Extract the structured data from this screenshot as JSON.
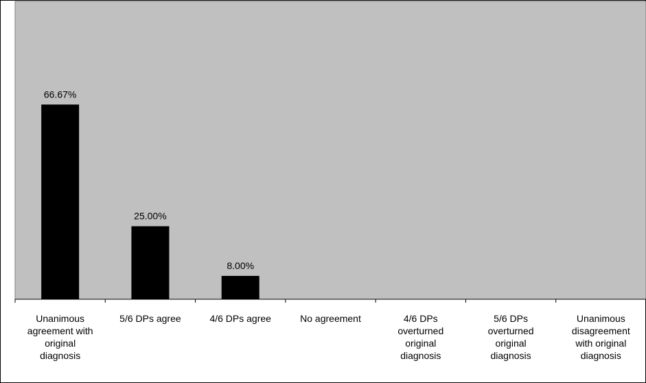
{
  "chart_data": {
    "type": "bar",
    "categories": [
      "Unanimous agreement with original diagnosis",
      "5/6 DPs agree",
      "4/6 DPs agree",
      "No agreement",
      "4/6 DPs overturned original diagnosis",
      "5/6 DPs overturned original diagnosis",
      "Unanimous disagreement with original diagnosis"
    ],
    "values": [
      66.67,
      25,
      8,
      0,
      0,
      0,
      0
    ],
    "value_labels": [
      "66.67%",
      "25.00%",
      "8.00%",
      null,
      null,
      null,
      null
    ],
    "color": "#000000",
    "background": "#c0c0c0",
    "ylim": [
      0,
      102
    ]
  }
}
